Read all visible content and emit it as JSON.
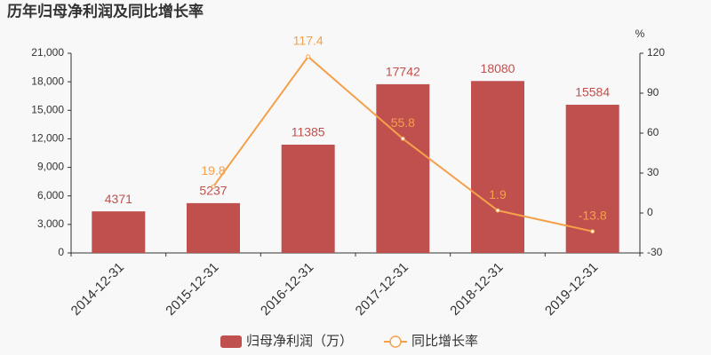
{
  "chart_data": {
    "type": "bar",
    "title": "历年归母净利润及同比增长率",
    "categories": [
      "2014-12-31",
      "2015-12-31",
      "2016-12-31",
      "2017-12-31",
      "2018-12-31",
      "2019-12-31"
    ],
    "series": [
      {
        "name": "归母净利润（万）",
        "color": "#c0504d",
        "values": [
          4371,
          5237,
          11385,
          17742,
          18080,
          15584
        ]
      },
      {
        "name": "同比增长率",
        "type": "line",
        "axis": "y2",
        "color": "#f5a04a",
        "values": [
          null,
          19.8,
          117.4,
          55.8,
          1.9,
          -13.8
        ]
      }
    ],
    "ylim": [
      0,
      21000
    ],
    "yticks": [
      0,
      {
        "value": 3000,
        "label": "3,000"
      },
      {
        "value": 6000,
        "label": "6,000"
      },
      {
        "value": 9000,
        "label": "9,000"
      },
      {
        "value": 12000,
        "label": "12,000"
      },
      {
        "value": 15000,
        "label": "15,000"
      },
      {
        "value": 18000,
        "label": "18,000"
      },
      {
        "value": 21000,
        "label": "21,000"
      }
    ],
    "y2lim": [
      -30,
      120
    ],
    "y2ticks": [
      -30,
      0,
      30,
      60,
      90,
      120
    ],
    "y2label": "%",
    "legend": "bottom"
  }
}
